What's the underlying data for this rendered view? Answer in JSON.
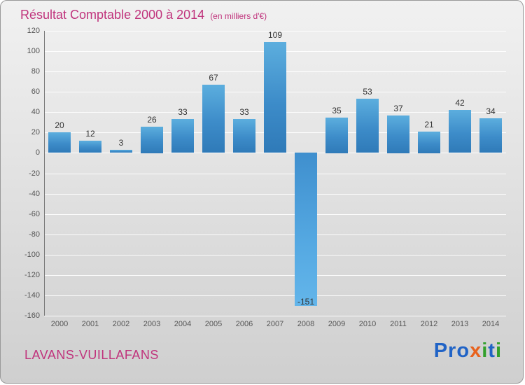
{
  "title": {
    "text": "Résultat Comptable 2000 à 2014",
    "subtitle": "(en milliers d'€)"
  },
  "footer": {
    "org": "LAVANS-VUILLAFANS"
  },
  "logo": {
    "word": "Proxiti",
    "letters": [
      {
        "ch": "P",
        "color": "#2063c6"
      },
      {
        "ch": "r",
        "color": "#2063c6"
      },
      {
        "ch": "o",
        "color": "#2063c6"
      },
      {
        "ch": "x",
        "color": "#e8611c"
      },
      {
        "ch": "i",
        "color": "#33a02c"
      },
      {
        "ch": "t",
        "color": "#2063c6"
      },
      {
        "ch": "i",
        "color": "#33a02c"
      }
    ]
  },
  "chart_data": {
    "type": "bar",
    "title": "Résultat Comptable 2000 à 2014",
    "subtitle": "(en milliers d'€)",
    "xlabel": "",
    "ylabel": "",
    "categories": [
      "2000",
      "2001",
      "2002",
      "2003",
      "2004",
      "2005",
      "2006",
      "2007",
      "2008",
      "2009",
      "2010",
      "2011",
      "2012",
      "2013",
      "2014"
    ],
    "values": [
      20,
      12,
      3,
      26,
      33,
      67,
      33,
      109,
      -151,
      35,
      53,
      37,
      21,
      42,
      34
    ],
    "ylim": [
      -160,
      120
    ],
    "ytick_step": 20,
    "grid": true,
    "legend": "none",
    "bar_color_top": "#5caede",
    "bar_color_bottom": "#2f7ab8",
    "negative_bar_color": "#55a9e2"
  }
}
